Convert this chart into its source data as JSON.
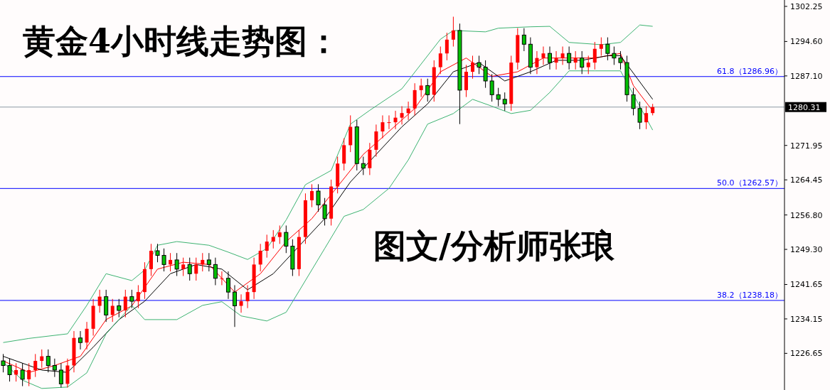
{
  "chart_data": {
    "type": "candlestick",
    "title": "黄金4小时线走势图：",
    "annotations": [
      "图文/分析师张琅"
    ],
    "categories": [
      null,
      null,
      null,
      null,
      null,
      null,
      null,
      null,
      null,
      null,
      null,
      null,
      null,
      null,
      null,
      null,
      null,
      null,
      null,
      null,
      null,
      null,
      null,
      null,
      null,
      null,
      null,
      null,
      null,
      null,
      null,
      null,
      null,
      null,
      null,
      null,
      null,
      null,
      null,
      null,
      null,
      null,
      null,
      null,
      null,
      null,
      null,
      null,
      null,
      null,
      null,
      null,
      null,
      null,
      null,
      null,
      null,
      null,
      null,
      null,
      null,
      null,
      null,
      null,
      null,
      null,
      null,
      null,
      null,
      null,
      null,
      null,
      null,
      null,
      null,
      null,
      null,
      null,
      null,
      null,
      null,
      null,
      null,
      null,
      null,
      null,
      null,
      null,
      null,
      null,
      null,
      null,
      null,
      null,
      null,
      null,
      null,
      null,
      null,
      null,
      null,
      null,
      null,
      null,
      null,
      null,
      null,
      null,
      null,
      null,
      null,
      null,
      null,
      null,
      null,
      null,
      null,
      null,
      null,
      null,
      null,
      null
    ],
    "colors": [
      "#00c000",
      "#00c000",
      "#ff0000",
      "#00c000",
      "#ff0000",
      "#ff0000",
      "#ff0000",
      "#00c000",
      "#00c000",
      "#00c000",
      "#ff0000",
      "#ff0000",
      "#00c000",
      "#ff0000",
      "#ff0000",
      "#ff0000",
      "#00c000",
      "#ff0000",
      "#00c000",
      "#ff0000",
      "#00c000",
      "#ff0000",
      "#ff0000",
      "#ff0000",
      "#00c000",
      "#00c000",
      "#ff0000",
      "#00c000",
      "#ff0000",
      "#00c000",
      "#ff0000",
      "#ff0000",
      "#00c000",
      "#00c000",
      "#ff0000",
      "#00c000",
      "#00c000",
      "#ff0000",
      "#ff0000",
      "#ff0000",
      "#ff0000",
      "#ff0000",
      "#ff0000",
      "#ff0000",
      "#00c000",
      "#00c000",
      "#ff0000",
      "#ff0000",
      "#ff0000",
      "#00c000",
      "#00c000",
      "#ff0000",
      "#ff0000",
      "#ff0000",
      "#ff0000",
      "#00c000",
      "#00c000",
      "#ff0000",
      "#ff0000",
      "#ff0000",
      "#ff0000",
      "#ff0000",
      "#ff0000",
      "#ff0000",
      "#ff0000",
      "#ff0000",
      "#00c000",
      "#ff0000",
      "#ff0000",
      "#ff0000",
      "#ff0000",
      "#00c000",
      "#ff0000",
      "#ff0000",
      "#00c000",
      "#00c000",
      "#00c000",
      "#00c000",
      "#00c000",
      "#ff0000",
      "#ff0000",
      "#00c000",
      "#00c000",
      "#ff0000",
      "#ff0000",
      "#00c000",
      "#ff0000",
      "#ff0000",
      "#00c000",
      "#ff0000",
      "#00c000",
      "#ff0000",
      "#ff0000",
      "#ff0000",
      "#00c000",
      "#00c000",
      "#00c000",
      "#00c000",
      "#00c000",
      "#00c000",
      "#ff0000",
      "#ff0000",
      null,
      null,
      null,
      null,
      null,
      null,
      null,
      null,
      null,
      null,
      null,
      null,
      null,
      null,
      null,
      null,
      null,
      null,
      null,
      null
    ],
    "ohlc": [
      [
        1225,
        1226.5,
        1222.5,
        1224
      ],
      [
        1224,
        1225.5,
        1220.5,
        1222
      ],
      [
        1222,
        1224.5,
        1220.5,
        1223
      ],
      [
        1223,
        1224.5,
        1219.5,
        1221
      ],
      [
        1221,
        1224.5,
        1219.5,
        1223
      ],
      [
        1223,
        1226.5,
        1221.5,
        1225
      ],
      [
        1225,
        1227.5,
        1223.5,
        1226
      ],
      [
        1226,
        1227.5,
        1222.5,
        1224
      ],
      [
        1224,
        1225.5,
        1221.5,
        1223
      ],
      [
        1223,
        1224.5,
        1219.2,
        1220
      ],
      [
        1220,
        1225.5,
        1219.2,
        1224
      ],
      [
        1224,
        1231.5,
        1222.5,
        1230
      ],
      [
        1230,
        1231.5,
        1227.5,
        1229
      ],
      [
        1229,
        1233.5,
        1227.5,
        1232
      ],
      [
        1232,
        1238.5,
        1230.5,
        1237
      ],
      [
        1237,
        1240.5,
        1235.5,
        1239
      ],
      [
        1239,
        1240.5,
        1233.5,
        1235
      ],
      [
        1235,
        1238.5,
        1233.5,
        1237
      ],
      [
        1237,
        1238.5,
        1234.5,
        1236
      ],
      [
        1236,
        1240.5,
        1234.5,
        1239
      ],
      [
        1239,
        1240.5,
        1236.5,
        1238
      ],
      [
        1238,
        1241.5,
        1236.5,
        1240
      ],
      [
        1240,
        1246.5,
        1238.5,
        1245
      ],
      [
        1245,
        1250.5,
        1243.5,
        1249
      ],
      [
        1249,
        1250.5,
        1246.5,
        1248
      ],
      [
        1248,
        1249.5,
        1244.5,
        1246
      ],
      [
        1246,
        1248.5,
        1244.5,
        1247
      ],
      [
        1247,
        1248.5,
        1243.5,
        1245
      ],
      [
        1245,
        1247.5,
        1243.5,
        1246
      ],
      [
        1246,
        1247.5,
        1242.5,
        1244
      ],
      [
        1244,
        1247.5,
        1242.5,
        1246
      ],
      [
        1246,
        1248.5,
        1244.5,
        1247
      ],
      [
        1247,
        1248.5,
        1244.5,
        1246
      ],
      [
        1246,
        1247.5,
        1241.5,
        1243
      ],
      [
        1243,
        1244.5,
        1241.5,
        1243
      ],
      [
        1243,
        1244.5,
        1238.5,
        1240
      ],
      [
        1240,
        1241.5,
        1232.4,
        1237
      ],
      [
        1237,
        1239.5,
        1235.5,
        1238
      ],
      [
        1238,
        1241.5,
        1236.5,
        1240
      ],
      [
        1240,
        1247.5,
        1238.5,
        1246
      ],
      [
        1246,
        1250.5,
        1244.5,
        1249
      ],
      [
        1249,
        1252.5,
        1247.5,
        1251
      ],
      [
        1251,
        1253.5,
        1249.5,
        1252
      ],
      [
        1252,
        1254.5,
        1250.5,
        1253
      ],
      [
        1253,
        1254.5,
        1248.5,
        1250
      ],
      [
        1250,
        1251.5,
        1243.5,
        1245
      ],
      [
        1245,
        1253.5,
        1243.5,
        1252
      ],
      [
        1252,
        1261.5,
        1250.5,
        1260
      ],
      [
        1260,
        1263.5,
        1258.5,
        1262
      ],
      [
        1262,
        1263.5,
        1257.5,
        1259
      ],
      [
        1259,
        1260.5,
        1254.5,
        1256
      ],
      [
        1256,
        1264.5,
        1254.5,
        1263
      ],
      [
        1263,
        1269.5,
        1261.5,
        1268
      ],
      [
        1268,
        1273.5,
        1266.5,
        1272
      ],
      [
        1272,
        1278.5,
        1270.5,
        1276
      ],
      [
        1276,
        1277.5,
        1266.5,
        1268
      ],
      [
        1268,
        1269.5,
        1265.5,
        1267
      ],
      [
        1267,
        1272.5,
        1265.5,
        1271
      ],
      [
        1271,
        1276.5,
        1269.5,
        1275
      ],
      [
        1275,
        1278.5,
        1273.5,
        1277
      ],
      [
        1277,
        1278.5,
        1275.5,
        1277
      ],
      [
        1277,
        1279.5,
        1275.5,
        1278
      ],
      [
        1278,
        1280.5,
        1276.5,
        1279
      ],
      [
        1279,
        1281.5,
        1277.5,
        1280
      ],
      [
        1280,
        1285.5,
        1278.5,
        1284
      ],
      [
        1284,
        1286.5,
        1282.5,
        1285
      ],
      [
        1285,
        1286.5,
        1281.5,
        1283
      ],
      [
        1283,
        1290.5,
        1281.5,
        1289
      ],
      [
        1289,
        1293.5,
        1287.5,
        1292
      ],
      [
        1292,
        1296.5,
        1290.5,
        1295
      ],
      [
        1295,
        1300,
        1293.5,
        1297
      ],
      [
        1297,
        1298.5,
        1276.6,
        1284
      ],
      [
        1284,
        1289.5,
        1282.5,
        1288
      ],
      [
        1288,
        1291.5,
        1286.5,
        1290
      ],
      [
        1290,
        1291.5,
        1287.5,
        1289
      ],
      [
        1289,
        1290.5,
        1284.5,
        1286
      ],
      [
        1286,
        1287.5,
        1281.5,
        1283
      ],
      [
        1283,
        1284.5,
        1280.5,
        1282
      ],
      [
        1282,
        1283.5,
        1279.5,
        1281
      ],
      [
        1281,
        1291.5,
        1279.5,
        1290
      ],
      [
        1290,
        1297.5,
        1288.5,
        1296
      ],
      [
        1296,
        1297.5,
        1292.5,
        1294
      ],
      [
        1294,
        1295.5,
        1287.5,
        1289
      ],
      [
        1289,
        1292.5,
        1287.5,
        1291
      ],
      [
        1291,
        1293.5,
        1289.5,
        1292
      ],
      [
        1292,
        1293.5,
        1288.5,
        1290
      ],
      [
        1290,
        1292.5,
        1288.5,
        1291
      ],
      [
        1291,
        1293.5,
        1289.5,
        1292
      ],
      [
        1292,
        1293.5,
        1288.5,
        1290
      ],
      [
        1290,
        1292.5,
        1288.5,
        1291
      ],
      [
        1291,
        1292.5,
        1287.5,
        1289
      ],
      [
        1289,
        1291.5,
        1287.5,
        1290
      ],
      [
        1290,
        1294.5,
        1288.5,
        1293
      ],
      [
        1293,
        1295.5,
        1291.5,
        1294
      ],
      [
        1294,
        1295.5,
        1290.5,
        1292
      ],
      [
        1292,
        1293.5,
        1289.5,
        1291
      ],
      [
        1291,
        1292.5,
        1288.5,
        1290
      ],
      [
        1290,
        1291.5,
        1281.5,
        1283
      ],
      [
        1283,
        1284.5,
        1278.5,
        1280
      ],
      [
        1280,
        1281.5,
        1275.5,
        1277
      ],
      [
        1277,
        1280.5,
        1275.5,
        1279
      ],
      [
        1279,
        1281,
        1278.5,
        1280.3
      ],
      null,
      null,
      null,
      null,
      null,
      null,
      null,
      null,
      null,
      null,
      null,
      null,
      null,
      null,
      null,
      null,
      null,
      null,
      null,
      null
    ],
    "series": [
      {
        "type": "line",
        "color": "#ff0000",
        "values": [
          1225,
          null,
          null,
          null,
          1222.5,
          null,
          null,
          null,
          1224,
          null,
          null,
          null,
          1226,
          null,
          null,
          null,
          1234,
          null,
          null,
          null,
          1237,
          null,
          null,
          null,
          1245,
          null,
          null,
          null,
          1246.5,
          null,
          null,
          null,
          1246,
          null,
          null,
          null,
          1240,
          null,
          null,
          null,
          1244,
          null,
          null,
          null,
          1251,
          null,
          null,
          null,
          1256,
          null,
          null,
          null,
          1263,
          null,
          null,
          null,
          1270,
          null,
          null,
          null,
          1275,
          null,
          null,
          null,
          1280,
          null,
          null,
          null,
          1288,
          null,
          null,
          null,
          1291,
          null,
          null,
          null,
          1287,
          null,
          null,
          null,
          1288,
          null,
          null,
          null,
          1291,
          null,
          null,
          null,
          1291,
          null,
          null,
          null,
          1291,
          null,
          null,
          null,
          1292,
          null,
          1285,
          null,
          null,
          1279.5,
          null,
          null,
          null,
          null,
          null,
          null,
          null,
          null,
          null,
          null,
          null,
          null,
          null,
          null,
          null,
          null,
          null,
          null,
          null,
          null
        ]
      },
      {
        "type": "line",
        "color": "#000000",
        "values": [
          1226,
          null,
          null,
          null,
          null,
          null,
          1223,
          null,
          null,
          null,
          1222.5,
          null,
          null,
          null,
          1228,
          null,
          null,
          null,
          1234,
          null,
          null,
          null,
          1238,
          null,
          null,
          null,
          1244,
          null,
          null,
          null,
          1246,
          null,
          null,
          null,
          1245,
          null,
          null,
          null,
          1240.5,
          null,
          null,
          null,
          1244,
          null,
          null,
          null,
          1250,
          null,
          null,
          null,
          1256,
          null,
          null,
          null,
          1264,
          null,
          null,
          null,
          1270,
          null,
          null,
          null,
          1276,
          null,
          null,
          null,
          1281,
          null,
          null,
          null,
          1288,
          null,
          null,
          null,
          1290,
          null,
          null,
          null,
          1286,
          null,
          null,
          null,
          1288,
          null,
          null,
          null,
          1290.5,
          null,
          null,
          null,
          1290.5,
          null,
          null,
          null,
          1291.5,
          null,
          1291.5,
          null,
          null,
          null,
          null,
          1282,
          null,
          null,
          null,
          null,
          null,
          null,
          null,
          null,
          null,
          null,
          null,
          null,
          null,
          null,
          null,
          null,
          null,
          null,
          null,
          null
        ]
      },
      {
        "type": "line",
        "color": "#3cb371",
        "values": [
          1229.0,
          null,
          null,
          null,
          1229.9,
          null,
          null,
          null,
          null,
          null,
          1230.9,
          null,
          null,
          1237.1,
          null,
          null,
          1244.0,
          null,
          null,
          null,
          1242.5,
          null,
          1244.8,
          null,
          1250.2,
          null,
          null,
          1251.0,
          null,
          null,
          null,
          null,
          1250.2,
          null,
          null,
          1248.7,
          null,
          null,
          1247.1,
          null,
          null,
          1249.5,
          null,
          null,
          1255.7,
          null,
          null,
          1263.4,
          null,
          null,
          null,
          1266.5,
          null,
          null,
          1276.6,
          null,
          null,
          1279.6,
          null,
          null,
          null,
          null,
          1284.3,
          null,
          null,
          1289.7,
          null,
          null,
          1295.1,
          null,
          1297.0,
          null,
          null,
          null,
          null,
          1296.7,
          null,
          1297.5,
          null,
          null,
          null,
          null,
          1297.8,
          null,
          null,
          1297.9,
          null,
          null,
          1294.4,
          null,
          null,
          null,
          null,
          1293.9,
          null,
          null,
          1294.4,
          null,
          null,
          1298.2,
          null,
          1297.9,
          null,
          null,
          null,
          null,
          null,
          null,
          null,
          null,
          null,
          null,
          null,
          null,
          null,
          null,
          null,
          null,
          null,
          null,
          null,
          null
        ]
      },
      {
        "type": "line",
        "color": "#3cb371",
        "values": [
          1224.7,
          null,
          null,
          1220.8,
          null,
          null,
          1219.0,
          null,
          null,
          null,
          1219.3,
          null,
          null,
          1222.4,
          null,
          null,
          1230.9,
          null,
          null,
          null,
          1237.1,
          null,
          1234.0,
          null,
          null,
          null,
          null,
          1234.0,
          null,
          null,
          null,
          1237.1,
          null,
          null,
          1237.9,
          null,
          null,
          1234.8,
          null,
          null,
          null,
          1233.7,
          null,
          null,
          1235.6,
          null,
          1240.2,
          null,
          null,
          null,
          1249.5,
          null,
          null,
          1256.5,
          null,
          null,
          1258.0,
          null,
          null,
          null,
          1262.6,
          null,
          null,
          1268.8,
          null,
          null,
          1276.6,
          null,
          null,
          null,
          1278.9,
          null,
          null,
          1282.0,
          null,
          null,
          1280.5,
          null,
          null,
          1278.9,
          null,
          null,
          1279.6,
          null,
          null,
          1283.5,
          null,
          null,
          1288.2,
          null,
          null,
          null,
          1288.2,
          null,
          null,
          null,
          1288.2,
          null,
          null,
          null,
          null,
          1275.3,
          null,
          null,
          null,
          null,
          null,
          null,
          null,
          null,
          null,
          null,
          null,
          null,
          null,
          null,
          null,
          null,
          null,
          null,
          null,
          null
        ]
      }
    ],
    "ylim": [
      1218.66,
      1303.64
    ],
    "yticks": [
      1302.25,
      {
        "value": 1294.6,
        "label": "1294.60"
      },
      {
        "value": 1287.1,
        "label": "1287.10"
      },
      1271.95,
      1264.45,
      {
        "value": 1256.8,
        "label": "1256.80"
      },
      {
        "value": 1249.3,
        "label": "1249.30"
      },
      1241.65,
      1234.15,
      1226.65
    ],
    "tick_labels": "y",
    "ref_lines": [
      {
        "axis": "y",
        "value": 1286.96,
        "label": "61.8（1286.96）",
        "color": "#0000ff"
      },
      {
        "axis": "y",
        "value": 1262.57,
        "label": "50.0（1262.57）",
        "color": "#0000ff"
      },
      {
        "axis": "y",
        "value": 1238.18,
        "label": "38.2（1238.18）",
        "color": "#0000ff"
      },
      {
        "axis": "y",
        "value": 1280.31,
        "label": "1280.31",
        "color": "#8c9aa6"
      }
    ]
  }
}
